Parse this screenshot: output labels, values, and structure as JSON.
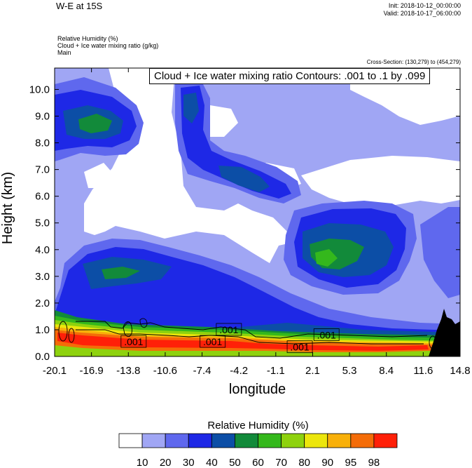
{
  "header": {
    "title": "W-E at 15S",
    "init": "Init: 2018-10-12_00:00:00",
    "valid": "Valid: 2018-10-17_06:00:00",
    "field1": "Relative Humidity   (%)",
    "field2": "Cloud + Ice water mixing ratio   (g/kg)",
    "field3": "Main",
    "cross_section": "Cross-Section: (130,279) to (454,279)",
    "contour_info": "Cloud + Ice water mixing ratio Contours: .001 to .1 by .099"
  },
  "chart_data": {
    "type": "contour",
    "xlabel": "longitude",
    "ylabel": "Height (km)",
    "xlim": [
      -20.1,
      14.8
    ],
    "ylim": [
      0,
      10.8
    ],
    "x_ticks": [
      "-20.1",
      "-16.9",
      "-13.8",
      "-10.6",
      "-7.4",
      "-4.2",
      "-1.1",
      "2.1",
      "5.3",
      "8.4",
      "11.6",
      "14.8"
    ],
    "y_ticks": [
      "0.0",
      "1.0",
      "2.0",
      "3.0",
      "4.0",
      "5.0",
      "6.0",
      "7.0",
      "8.0",
      "9.0",
      "10.0"
    ],
    "colorbar": {
      "title": "Relative Humidity  (%)",
      "levels": [
        "10",
        "20",
        "30",
        "40",
        "50",
        "60",
        "70",
        "80",
        "90",
        "95",
        "98"
      ],
      "colors": [
        "#ffffff",
        "#a0a6f4",
        "#5f68ee",
        "#1e28e6",
        "#0c4ea6",
        "#128a3a",
        "#34b81c",
        "#8ed20e",
        "#ece60c",
        "#f8b00a",
        "#f46c08",
        "#ff2008"
      ]
    },
    "contour_labels": [
      {
        "text": ".001",
        "x": -13.3,
        "y": 0.55
      },
      {
        "text": ".001",
        "x": -6.5,
        "y": 0.55
      },
      {
        "text": ".001",
        "x": -5.1,
        "y": 1.0
      },
      {
        "text": ".001",
        "x": 1.0,
        "y": 0.35
      },
      {
        "text": ".001",
        "x": 3.3,
        "y": 0.8
      }
    ]
  }
}
